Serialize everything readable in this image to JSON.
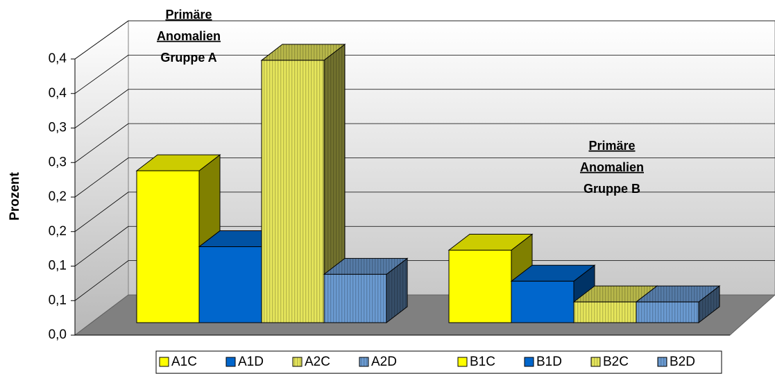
{
  "chart_data": {
    "type": "bar3d",
    "y_label": "Prozent",
    "annotations": [
      {
        "lines": [
          "Primäre",
          "Anomalien",
          "Gruppe A"
        ]
      },
      {
        "lines": [
          "Primäre",
          "Anomalien",
          "Gruppe B"
        ]
      }
    ],
    "series": [
      {
        "name": "A1C",
        "color": "#ffff00",
        "values": [
          0.22
        ]
      },
      {
        "name": "A1D",
        "color": "#0066cc",
        "values": [
          0.11
        ]
      },
      {
        "name": "A2C",
        "color": "#e6e65c",
        "hatch": true,
        "values": [
          0.38
        ]
      },
      {
        "name": "A2D",
        "color": "#6b9bd2",
        "hatch": true,
        "values": [
          0.07
        ]
      },
      {
        "name": "B1C",
        "color": "#ffff00",
        "values": [
          0.105
        ]
      },
      {
        "name": "B1D",
        "color": "#0066cc",
        "values": [
          0.06
        ]
      },
      {
        "name": "B2C",
        "color": "#e6e65c",
        "hatch": true,
        "values": [
          0.03
        ]
      },
      {
        "name": "B2D",
        "color": "#6b9bd2",
        "hatch": true,
        "values": [
          0.03
        ]
      }
    ],
    "ylim": [
      0,
      0.4
    ],
    "yticks": [
      {
        "value": 0,
        "label": "0,0"
      },
      {
        "value": 0.05,
        "label": "0,1"
      },
      {
        "value": 0.1,
        "label": "0,1"
      },
      {
        "value": 0.15,
        "label": "0,2"
      },
      {
        "value": 0.2,
        "label": "0,2"
      },
      {
        "value": 0.25,
        "label": "0,3"
      },
      {
        "value": 0.3,
        "label": "0,3"
      },
      {
        "value": 0.35,
        "label": "0,4"
      },
      {
        "value": 0.4,
        "label": "0,4"
      }
    ],
    "grid": true
  }
}
